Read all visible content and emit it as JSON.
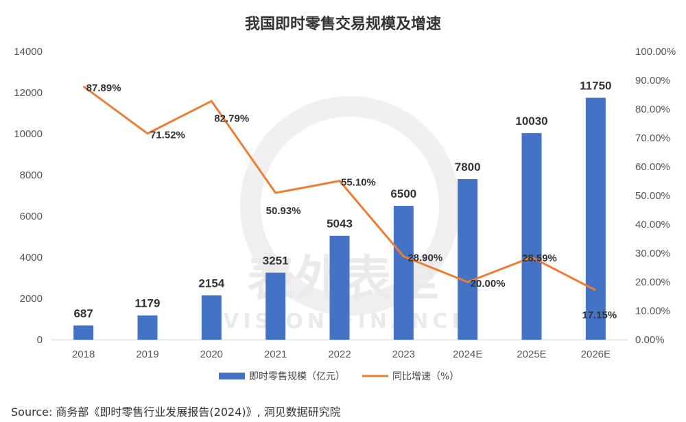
{
  "chart_data": {
    "type": "bar+line",
    "title": "我国即时零售交易规模及增速",
    "categories": [
      "2018",
      "2019",
      "2020",
      "2021",
      "2022",
      "2023",
      "2024E",
      "2025E",
      "2026E"
    ],
    "series": [
      {
        "name": "即时零售规模（亿元）",
        "type": "bar",
        "axis": "left",
        "color": "#4472C4",
        "values": [
          687,
          1179,
          2154,
          3251,
          5043,
          6500,
          7800,
          10030,
          11750
        ],
        "labels": [
          "687",
          "1179",
          "2154",
          "3251",
          "5043",
          "6500",
          "7800",
          "10030",
          "11750"
        ]
      },
      {
        "name": "同比增速（%）",
        "type": "line",
        "axis": "right",
        "color": "#ED7D31",
        "values": [
          87.89,
          71.52,
          82.79,
          50.93,
          55.1,
          28.9,
          20.0,
          28.59,
          17.15
        ],
        "labels": [
          "87.89%",
          "71.52%",
          "82.79%",
          "50.93%",
          "55.10%",
          "28.90%",
          "20.00%",
          "28.59%",
          "17.15%"
        ]
      }
    ],
    "y_left": {
      "range": [
        0,
        14000
      ],
      "ticks": [
        0,
        2000,
        4000,
        6000,
        8000,
        10000,
        12000,
        14000
      ],
      "tick_labels": [
        "0",
        "2000",
        "4000",
        "6000",
        "8000",
        "10000",
        "12000",
        "14000"
      ]
    },
    "y_right": {
      "range": [
        0,
        100
      ],
      "ticks": [
        0,
        10,
        20,
        30,
        40,
        50,
        60,
        70,
        80,
        90,
        100
      ],
      "tick_labels": [
        "0.00%",
        "10.00%",
        "20.00%",
        "30.00%",
        "40.00%",
        "50.00%",
        "60.00%",
        "70.00%",
        "80.00%",
        "90.00%",
        "100.00%"
      ]
    },
    "grid": false,
    "legend_position": "bottom"
  },
  "watermark": {
    "cn": "表外表里",
    "en": "VISION FINANCE"
  },
  "source": "Source:  商务部《即时零售行业发展报告(2024)》,  洞见数据研究院"
}
